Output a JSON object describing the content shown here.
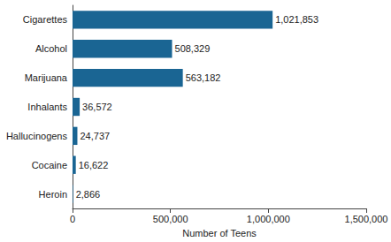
{
  "chart_data": {
    "type": "bar",
    "orientation": "horizontal",
    "categories": [
      "Cigarettes",
      "Alcohol",
      "Marijuana",
      "Inhalants",
      "Hallucinogens",
      "Cocaine",
      "Heroin"
    ],
    "values": [
      1021853,
      508329,
      563182,
      36572,
      24737,
      16622,
      2866
    ],
    "value_labels": [
      "1,021,853",
      "508,329",
      "563,182",
      "36,572",
      "24,737",
      "16,622",
      "2,866"
    ],
    "data_labels": true,
    "color": "#1a6593",
    "x_label": "Number of Teens",
    "xlim": [
      0,
      1500000
    ],
    "xticks": [
      0,
      {
        "value": 500000,
        "label": "500,000"
      },
      {
        "value": 1000000,
        "label": "1,000,000"
      },
      {
        "value": 1500000,
        "label": "1,500,000"
      }
    ],
    "grid": false
  }
}
